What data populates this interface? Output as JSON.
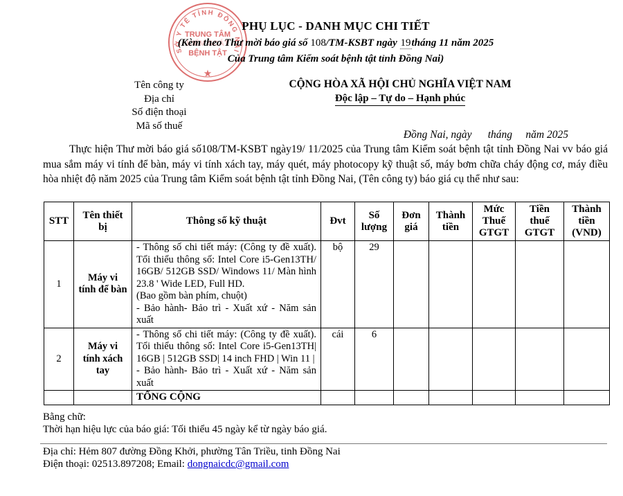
{
  "colors": {
    "stamp": "#d95c5c",
    "link": "#0000cc",
    "text": "#000000"
  },
  "stamp": {
    "arc_text": "SỞ Y TẾ TỈNH ĐỒNG NAI",
    "org_line1": "TRUNG TÂM",
    "org_line2": "KIỂM SOÁT",
    "org_line3": "BỆNH TẬT",
    "star": "★"
  },
  "header": {
    "title": "PHỤ LỤC - DANH MỤC CHI TIẾT",
    "subtitle_prefix": "(Kèm theo Thư mời báo giá số ",
    "subtitle_number": "108",
    "subtitle_mid": "/TM-KSBT ngày ",
    "subtitle_day": "19",
    "subtitle_suffix": "tháng 11 năm 2025",
    "subtitle_line2": "Của Trung tâm Kiểm soát bệnh tật tỉnh Đồng Nai)"
  },
  "company_block": {
    "lines": [
      "Tên công ty",
      "Địa chỉ",
      "Số điện thoại",
      "Mã số thuế"
    ]
  },
  "national": {
    "line1": "CỘNG HÒA XÃ HỘI CHỦ NGHĨA VIỆT NAM",
    "line2": "Độc lập – Tự do – Hạnh phúc"
  },
  "date_line": "Đồng Nai, ngày      tháng     năm 2025",
  "intro_paragraph": "Thực hiện Thư mời báo giá số108/TM-KSBT ngày19/ 11/2025 của Trung tâm Kiểm soát bệnh tật tỉnh Đồng Nai vv báo giá mua sắm máy vi tính để bàn, máy vi tính xách tay, máy quét, máy photocopy kỹ thuật số, máy bơm chữa cháy động cơ, máy điều hòa nhiệt độ năm 2025 của Trung tâm Kiểm soát bệnh tật tỉnh Đồng Nai, (Tên công ty) báo giá cụ thể như sau:",
  "table": {
    "headers": [
      "STT",
      "Tên thiết bị",
      "Thông số kỹ thuật",
      "Đvt",
      "Số lượng",
      "Đơn giá",
      "Thành tiền",
      "Mức Thuế GTGT",
      "Tiền thuế GTGT",
      "Thành tiền (VND)"
    ],
    "rows": [
      {
        "stt": "1",
        "name": "Máy vi tính để bàn",
        "specs": [
          "- Thông số chi tiết máy: (Công ty đề xuất). Tổi thiểu thông số: Intel Core i5-Gen13TH/ 16GB/ 512GB SSD/ Windows 11/ Màn hình 23.8 ' Wide LED, Full HD.",
          "(Bao gồm bàn phím, chuột)",
          "- Bảo hành- Bảo trì - Xuất xứ - Năm sản xuất"
        ],
        "unit": "bộ",
        "qty": "29",
        "don_gia": "",
        "thanh_tien": "",
        "muc_thue_gtgt": "",
        "tien_thue_gtgt": "",
        "thanh_tien_vnd": ""
      },
      {
        "stt": "2",
        "name": "Máy vi tính xách tay",
        "specs": [
          "- Thông số chi tiết máy: (Công ty đề xuất). Tổi thiểu thông số: Intel Core i5-Gen13TH| 16GB | 512GB SSD| 14 inch FHD | Win 11 |",
          "- Bảo hành- Bảo trì - Xuất xứ - Năm sản xuất"
        ],
        "unit": "cái",
        "qty": "6",
        "don_gia": "",
        "thanh_tien": "",
        "muc_thue_gtgt": "",
        "tien_thue_gtgt": "",
        "thanh_tien_vnd": ""
      }
    ],
    "total_label": "TỔNG CỘNG"
  },
  "footer": {
    "amount_in_words": "Bằng chữ:",
    "validity": "Thời hạn hiệu lực của báo giá: Tối thiểu 45 ngày kể từ ngày báo giá.",
    "address": "Địa chỉ: Hẻm 807 đường Đồng Khởi, phường Tân Triều, tinh Đồng Nai",
    "contact_prefix": "Điện thoại: 02513.897208; Email: ",
    "email": "dongnaicdc@gmail.com"
  }
}
